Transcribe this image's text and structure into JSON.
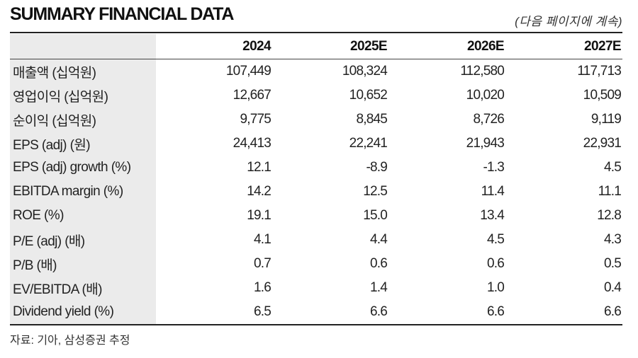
{
  "title": "SUMMARY FINANCIAL DATA",
  "continued_note": "(다음 페이지에 계속)",
  "table": {
    "headers": [
      "",
      "2024",
      "2025E",
      "2026E",
      "2027E"
    ],
    "rows": [
      {
        "label": "매출액 (십억원)",
        "values": [
          "107,449",
          "108,324",
          "112,580",
          "117,713"
        ]
      },
      {
        "label": "영업이익 (십억원)",
        "values": [
          "12,667",
          "10,652",
          "10,020",
          "10,509"
        ]
      },
      {
        "label": "순이익 (십억원)",
        "values": [
          "9,775",
          "8,845",
          "8,726",
          "9,119"
        ]
      },
      {
        "label": "EPS (adj) (원)",
        "values": [
          "24,413",
          "22,241",
          "21,943",
          "22,931"
        ]
      },
      {
        "label": "EPS (adj) growth (%)",
        "values": [
          "12.1",
          "-8.9",
          "-1.3",
          "4.5"
        ]
      },
      {
        "label": "EBITDA margin (%)",
        "values": [
          "14.2",
          "12.5",
          "11.4",
          "11.1"
        ]
      },
      {
        "label": "ROE (%)",
        "values": [
          "19.1",
          "15.0",
          "13.4",
          "12.8"
        ]
      },
      {
        "label": "P/E (adj) (배)",
        "values": [
          "4.1",
          "4.4",
          "4.5",
          "4.3"
        ]
      },
      {
        "label": "P/B (배)",
        "values": [
          "0.7",
          "0.6",
          "0.6",
          "0.5"
        ]
      },
      {
        "label": "EV/EBITDA (배)",
        "values": [
          "1.6",
          "1.4",
          "1.0",
          "0.4"
        ]
      },
      {
        "label": "Dividend yield (%)",
        "values": [
          "6.5",
          "6.6",
          "6.6",
          "6.6"
        ]
      }
    ]
  },
  "source": "자료: 기아, 삼성증권 추정"
}
